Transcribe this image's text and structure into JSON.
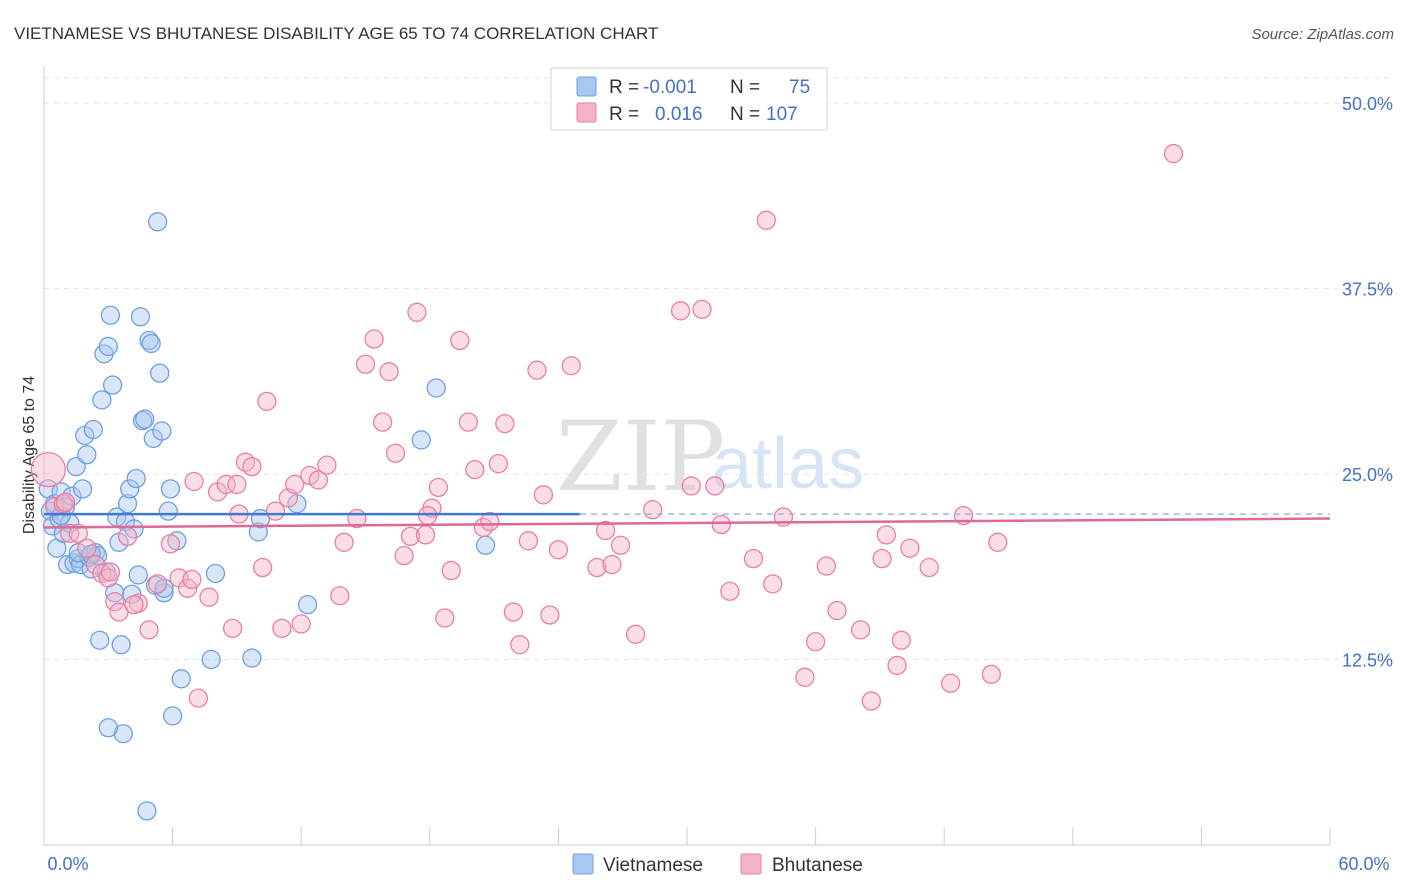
{
  "header": {
    "title": "VIETNAMESE VS BHUTANESE DISABILITY AGE 65 TO 74 CORRELATION CHART",
    "source": "Source: ZipAtlas.com"
  },
  "watermark": {
    "zip": "ZIP",
    "atlas": "atlas"
  },
  "legend": {
    "rows": [
      {
        "r_label": "R =",
        "r_value": "-0.001",
        "n_label": "N =",
        "n_value": "75",
        "color": "#a9c8f0"
      },
      {
        "r_label": "R =",
        "r_value": "0.016",
        "n_label": "N =",
        "n_value": "107",
        "color": "#f4b3c8"
      }
    ]
  },
  "bottom_legend": [
    {
      "label": "Vietnamese",
      "color": "#a9c8f0"
    },
    {
      "label": "Bhutanese",
      "color": "#f4b3c8"
    }
  ],
  "chart_data": {
    "type": "scatter",
    "title": "VIETNAMESE VS BHUTANESE DISABILITY AGE 65 TO 74 CORRELATION CHART",
    "xlabel": "",
    "ylabel": "Disability Age 65 to 74",
    "xlim": [
      0,
      60
    ],
    "ylim": [
      0,
      52.5
    ],
    "x_tick_labels": [
      "0.0%",
      "60.0%"
    ],
    "y_ticks": [
      12.5,
      25.0,
      37.5,
      50.0
    ],
    "y_tick_labels": [
      "12.5%",
      "25.0%",
      "37.5%",
      "50.0%"
    ],
    "grid": true,
    "legend_position": "top-center",
    "series": [
      {
        "name": "Vietnamese",
        "color": "#6fa0e0",
        "fill": "#a9c8f0",
        "trend": {
          "x_start": 0,
          "x_end": 25,
          "y_start": 22.3,
          "y_end": 22.3,
          "dashed_to": 60
        },
        "points": [
          [
            0.2,
            24.0
          ],
          [
            0.3,
            22.5
          ],
          [
            0.4,
            21.5
          ],
          [
            0.5,
            23.0
          ],
          [
            0.6,
            20.0
          ],
          [
            0.7,
            22.0
          ],
          [
            0.8,
            23.8
          ],
          [
            0.9,
            21.0
          ],
          [
            1.0,
            22.8
          ],
          [
            1.1,
            18.9
          ],
          [
            1.2,
            21.7
          ],
          [
            1.3,
            23.5
          ],
          [
            1.4,
            19.0
          ],
          [
            1.5,
            25.5
          ],
          [
            1.6,
            19.3
          ],
          [
            1.7,
            18.9
          ],
          [
            1.8,
            24.0
          ],
          [
            1.9,
            27.6
          ],
          [
            2.0,
            26.3
          ],
          [
            2.1,
            19.4
          ],
          [
            2.2,
            18.6
          ],
          [
            2.3,
            28.0
          ],
          [
            2.4,
            19.7
          ],
          [
            2.5,
            19.5
          ],
          [
            2.6,
            13.8
          ],
          [
            2.7,
            30.0
          ],
          [
            2.8,
            33.1
          ],
          [
            2.9,
            18.4
          ],
          [
            3.0,
            33.6
          ],
          [
            3.1,
            35.7
          ],
          [
            3.2,
            31.0
          ],
          [
            3.3,
            17.0
          ],
          [
            3.4,
            22.1
          ],
          [
            3.5,
            20.4
          ],
          [
            3.6,
            13.5
          ],
          [
            3.7,
            7.5
          ],
          [
            3.8,
            21.8
          ],
          [
            3.9,
            23.0
          ],
          [
            4.0,
            24.0
          ],
          [
            4.1,
            16.9
          ],
          [
            4.2,
            21.3
          ],
          [
            4.3,
            24.7
          ],
          [
            4.4,
            18.2
          ],
          [
            4.5,
            35.6
          ],
          [
            4.6,
            28.6
          ],
          [
            4.7,
            28.7
          ],
          [
            4.8,
            2.3
          ],
          [
            4.9,
            34.0
          ],
          [
            5.0,
            33.8
          ],
          [
            5.1,
            27.4
          ],
          [
            5.2,
            17.5
          ],
          [
            5.3,
            42.0
          ],
          [
            5.4,
            31.8
          ],
          [
            5.5,
            27.9
          ],
          [
            5.6,
            17.0
          ],
          [
            5.8,
            22.5
          ],
          [
            5.9,
            24.0
          ],
          [
            6.0,
            8.7
          ],
          [
            6.2,
            20.5
          ],
          [
            6.4,
            11.2
          ],
          [
            7.8,
            12.5
          ],
          [
            8.0,
            18.3
          ],
          [
            9.7,
            12.6
          ],
          [
            10.0,
            21.1
          ],
          [
            10.1,
            22.0
          ],
          [
            11.8,
            23.0
          ],
          [
            12.3,
            16.2
          ],
          [
            17.6,
            27.3
          ],
          [
            18.3,
            30.8
          ],
          [
            20.6,
            20.2
          ],
          [
            3.0,
            7.9
          ],
          [
            1.6,
            19.7
          ],
          [
            2.2,
            19.6
          ],
          [
            5.6,
            17.3
          ],
          [
            0.8,
            22.2
          ]
        ]
      },
      {
        "name": "Bhutanese",
        "color": "#e87fa3",
        "fill": "#f4b3c8",
        "trend": {
          "x_start": 0,
          "x_end": 60,
          "y_start": 21.4,
          "y_end": 22.0
        },
        "points": [
          [
            0.2,
            25.3
          ],
          [
            0.5,
            22.8
          ],
          [
            0.9,
            23.0
          ],
          [
            1.2,
            21.0
          ],
          [
            1.6,
            21.0
          ],
          [
            2.0,
            20.0
          ],
          [
            2.4,
            18.9
          ],
          [
            2.7,
            18.3
          ],
          [
            3.0,
            18.0
          ],
          [
            3.3,
            16.4
          ],
          [
            3.5,
            15.7
          ],
          [
            3.9,
            20.8
          ],
          [
            4.4,
            16.3
          ],
          [
            4.9,
            14.5
          ],
          [
            5.3,
            17.6
          ],
          [
            5.9,
            20.3
          ],
          [
            6.3,
            18.0
          ],
          [
            6.7,
            17.3
          ],
          [
            7.0,
            24.5
          ],
          [
            7.2,
            9.9
          ],
          [
            7.7,
            16.7
          ],
          [
            8.1,
            23.8
          ],
          [
            8.5,
            24.3
          ],
          [
            8.8,
            14.6
          ],
          [
            9.1,
            22.3
          ],
          [
            9.4,
            25.8
          ],
          [
            9.7,
            25.5
          ],
          [
            10.2,
            18.7
          ],
          [
            10.4,
            29.9
          ],
          [
            10.8,
            22.5
          ],
          [
            11.1,
            14.6
          ],
          [
            11.4,
            23.4
          ],
          [
            11.7,
            24.3
          ],
          [
            12.0,
            14.9
          ],
          [
            12.4,
            24.9
          ],
          [
            12.8,
            24.6
          ],
          [
            13.2,
            25.6
          ],
          [
            13.8,
            16.8
          ],
          [
            14.0,
            20.4
          ],
          [
            14.6,
            22.0
          ],
          [
            15.0,
            32.4
          ],
          [
            15.4,
            34.1
          ],
          [
            15.8,
            28.5
          ],
          [
            16.1,
            31.9
          ],
          [
            16.4,
            26.4
          ],
          [
            16.8,
            19.5
          ],
          [
            17.1,
            20.8
          ],
          [
            17.4,
            35.9
          ],
          [
            17.8,
            20.9
          ],
          [
            18.1,
            22.7
          ],
          [
            18.4,
            24.1
          ],
          [
            18.7,
            15.3
          ],
          [
            19.0,
            18.5
          ],
          [
            19.4,
            34.0
          ],
          [
            19.8,
            28.5
          ],
          [
            20.1,
            25.3
          ],
          [
            20.5,
            21.4
          ],
          [
            20.8,
            21.8
          ],
          [
            21.2,
            25.7
          ],
          [
            21.5,
            28.4
          ],
          [
            21.9,
            15.7
          ],
          [
            22.2,
            13.5
          ],
          [
            22.6,
            20.5
          ],
          [
            23.0,
            32.0
          ],
          [
            23.3,
            23.6
          ],
          [
            23.6,
            15.5
          ],
          [
            24.0,
            19.9
          ],
          [
            24.6,
            32.3
          ],
          [
            25.8,
            18.7
          ],
          [
            26.2,
            21.2
          ],
          [
            26.5,
            18.9
          ],
          [
            26.9,
            20.2
          ],
          [
            27.6,
            14.2
          ],
          [
            28.4,
            22.6
          ],
          [
            29.7,
            36.0
          ],
          [
            30.2,
            24.2
          ],
          [
            30.7,
            36.1
          ],
          [
            31.3,
            24.2
          ],
          [
            31.6,
            21.6
          ],
          [
            32.0,
            17.1
          ],
          [
            33.1,
            19.3
          ],
          [
            33.7,
            42.1
          ],
          [
            34.0,
            17.6
          ],
          [
            34.5,
            22.1
          ],
          [
            35.5,
            11.3
          ],
          [
            36.0,
            13.7
          ],
          [
            36.5,
            18.8
          ],
          [
            37.0,
            15.8
          ],
          [
            38.1,
            14.5
          ],
          [
            38.6,
            9.7
          ],
          [
            39.1,
            19.3
          ],
          [
            39.3,
            20.9
          ],
          [
            39.8,
            12.1
          ],
          [
            40.0,
            13.8
          ],
          [
            40.4,
            20.0
          ],
          [
            41.3,
            18.7
          ],
          [
            42.3,
            10.9
          ],
          [
            42.9,
            22.2
          ],
          [
            44.2,
            11.5
          ],
          [
            44.5,
            20.4
          ],
          [
            52.7,
            46.6
          ],
          [
            17.9,
            22.2
          ],
          [
            6.9,
            17.9
          ],
          [
            4.2,
            16.2
          ],
          [
            3.1,
            18.4
          ],
          [
            1.0,
            23.1
          ],
          [
            9.0,
            24.3
          ]
        ]
      }
    ]
  }
}
